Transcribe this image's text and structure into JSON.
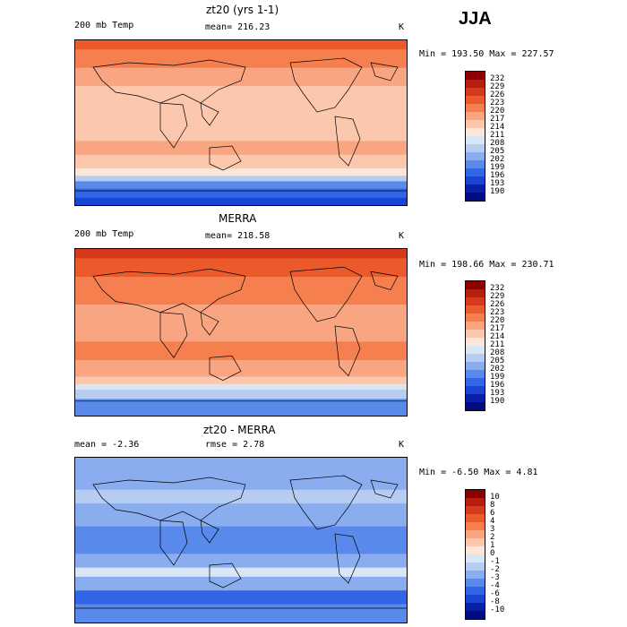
{
  "season": "JJA",
  "chart_data": [
    {
      "type": "heatmap",
      "title": "zt20 (yrs 1-1)",
      "left_label": "200 mb Temp",
      "center_label": "mean=",
      "center_value": "216.23",
      "units": "K",
      "min_label": "Min =",
      "min_value": "193.50",
      "max_label": "Max =",
      "max_value": "227.57",
      "levels": [
        "232",
        "229",
        "226",
        "223",
        "220",
        "217",
        "214",
        "211",
        "208",
        "205",
        "202",
        "199",
        "196",
        "193",
        "190"
      ],
      "colors": [
        "#8b0000",
        "#b81e0e",
        "#d63a1c",
        "#eb5a2a",
        "#f57f4f",
        "#f9a582",
        "#fcc8ad",
        "#fbe6d7",
        "#d9e6f5",
        "#b6ccf0",
        "#8aadf0",
        "#5a89ec",
        "#3366e6",
        "#1a44d4",
        "#0a1fa8",
        "#000c80"
      ],
      "bands": [
        {
          "lat_top": 90,
          "lat_bottom": 80,
          "value": 223
        },
        {
          "lat_top": 80,
          "lat_bottom": 60,
          "value": 221
        },
        {
          "lat_top": 60,
          "lat_bottom": 40,
          "value": 219
        },
        {
          "lat_top": 40,
          "lat_bottom": -20,
          "value": 216
        },
        {
          "lat_top": -20,
          "lat_bottom": -35,
          "value": 218
        },
        {
          "lat_top": -35,
          "lat_bottom": -50,
          "value": 215
        },
        {
          "lat_top": -50,
          "lat_bottom": -58,
          "value": 212
        },
        {
          "lat_top": -58,
          "lat_bottom": -64,
          "value": 206
        },
        {
          "lat_top": -64,
          "lat_bottom": -72,
          "value": 200
        },
        {
          "lat_top": -72,
          "lat_bottom": -82,
          "value": 196
        },
        {
          "lat_top": -82,
          "lat_bottom": -90,
          "value": 193
        }
      ]
    },
    {
      "type": "heatmap",
      "title": "MERRA",
      "left_label": "200 mb Temp",
      "center_label": "mean=",
      "center_value": "218.58",
      "units": "K",
      "min_label": "Min =",
      "min_value": "198.66",
      "max_label": "Max =",
      "max_value": "230.71",
      "levels": [
        "232",
        "229",
        "226",
        "223",
        "220",
        "217",
        "214",
        "211",
        "208",
        "205",
        "202",
        "199",
        "196",
        "193",
        "190"
      ],
      "colors": [
        "#8b0000",
        "#b81e0e",
        "#d63a1c",
        "#eb5a2a",
        "#f57f4f",
        "#f9a582",
        "#fcc8ad",
        "#fbe6d7",
        "#d9e6f5",
        "#b6ccf0",
        "#8aadf0",
        "#5a89ec",
        "#3366e6",
        "#1a44d4",
        "#0a1fa8",
        "#000c80"
      ],
      "bands": [
        {
          "lat_top": 90,
          "lat_bottom": 80,
          "value": 228
        },
        {
          "lat_top": 80,
          "lat_bottom": 60,
          "value": 225
        },
        {
          "lat_top": 60,
          "lat_bottom": 30,
          "value": 222
        },
        {
          "lat_top": 30,
          "lat_bottom": -10,
          "value": 219
        },
        {
          "lat_top": -10,
          "lat_bottom": -30,
          "value": 221
        },
        {
          "lat_top": -30,
          "lat_bottom": -48,
          "value": 218
        },
        {
          "lat_top": -48,
          "lat_bottom": -56,
          "value": 214
        },
        {
          "lat_top": -56,
          "lat_bottom": -62,
          "value": 209
        },
        {
          "lat_top": -62,
          "lat_bottom": -72,
          "value": 205
        },
        {
          "lat_top": -72,
          "lat_bottom": -90,
          "value": 201
        }
      ]
    },
    {
      "type": "heatmap",
      "title": "zt20 - MERRA",
      "left_label": "mean =",
      "left_value": "-2.36",
      "center_label": "rmse =",
      "center_value": "2.78",
      "units": "K",
      "min_label": "Min =",
      "min_value": "-6.50",
      "max_label": "Max =",
      "max_value": "4.81",
      "levels": [
        "10",
        "8",
        "6",
        "4",
        "3",
        "2",
        "1",
        "0",
        "-1",
        "-2",
        "-3",
        "-4",
        "-6",
        "-8",
        "-10"
      ],
      "colors": [
        "#8b0000",
        "#b81e0e",
        "#d63a1c",
        "#eb5a2a",
        "#f57f4f",
        "#f9a582",
        "#fcc8ad",
        "#fbe6d7",
        "#d9e6f5",
        "#b6ccf0",
        "#8aadf0",
        "#5a89ec",
        "#3366e6",
        "#1a44d4",
        "#0a1fa8",
        "#000c80"
      ],
      "bands": [
        {
          "lat_top": 90,
          "lat_bottom": 70,
          "value": -3
        },
        {
          "lat_top": 70,
          "lat_bottom": 55,
          "value": -2.5
        },
        {
          "lat_top": 55,
          "lat_bottom": 40,
          "value": -1.5
        },
        {
          "lat_top": 40,
          "lat_bottom": 15,
          "value": -2.5
        },
        {
          "lat_top": 15,
          "lat_bottom": -15,
          "value": -3.5
        },
        {
          "lat_top": -15,
          "lat_bottom": -30,
          "value": -2.5
        },
        {
          "lat_top": -30,
          "lat_bottom": -40,
          "value": -0.5
        },
        {
          "lat_top": -40,
          "lat_bottom": -55,
          "value": -3
        },
        {
          "lat_top": -55,
          "lat_bottom": -70,
          "value": -4.5
        },
        {
          "lat_top": -70,
          "lat_bottom": -90,
          "value": -3.5
        }
      ]
    }
  ]
}
